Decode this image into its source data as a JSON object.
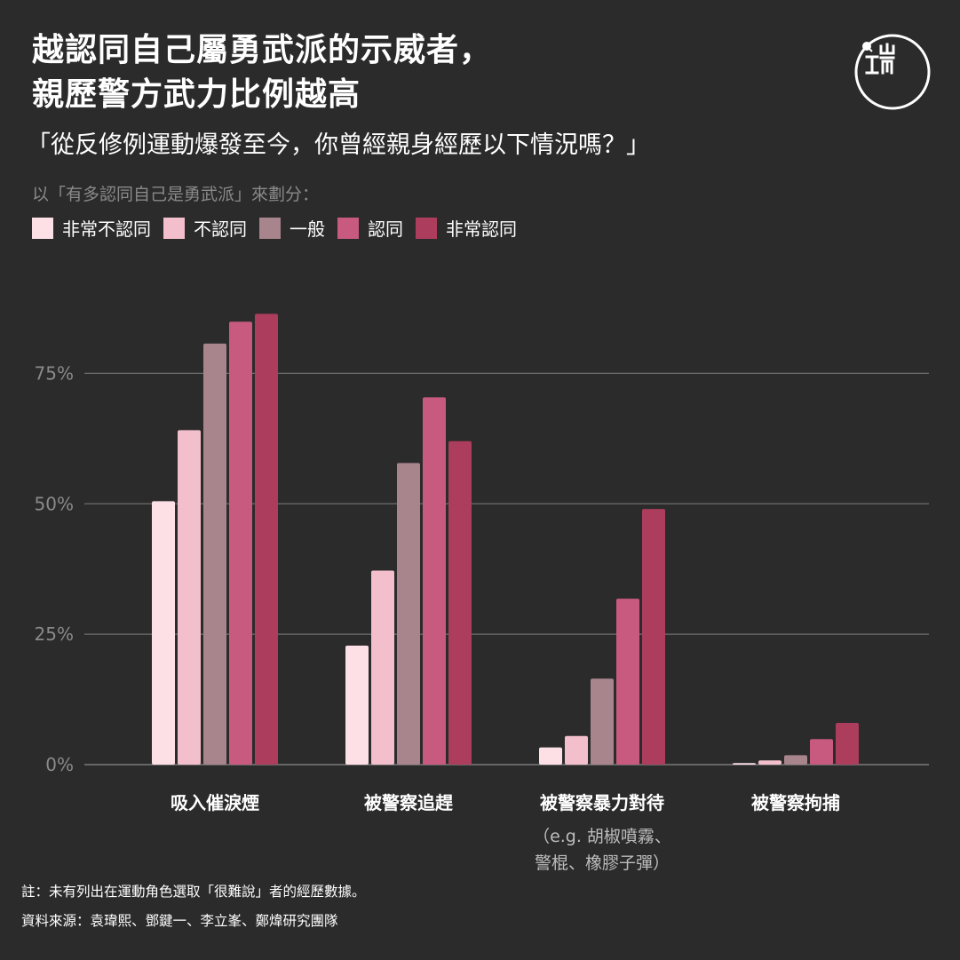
{
  "header": {
    "title_line1": "越認同自己屬勇武派的示威者，",
    "title_line2": "親歷警方武力比例越高",
    "subtitle": "「從反修例運動爆發至今，你曾經親身經歷以下情況嗎？」",
    "grouping_note": "以「有多認同自己是勇武派」來劃分："
  },
  "logo": {
    "icon": "initium-media-logo-icon"
  },
  "footer": {
    "note": "註：未有列出在運動角色選取「很難說」者的經歷數據。",
    "source": "資料來源：袁瑋熙、鄧鍵一、李立峯、鄭煒研究團隊"
  },
  "chart_data": {
    "type": "bar",
    "title": "越認同自己屬勇武派的示威者，親歷警方武力比例越高",
    "subtitle": "「從反修例運動爆發至今，你曾經親身經歷以下情況嗎？」",
    "categories": [
      "吸入催淚煙",
      "被警察追趕",
      "被警察暴力對待",
      "被警察拘捕"
    ],
    "category_sublabels": [
      "",
      "",
      "（e.g. 胡椒噴霧、\n警棍、橡膠子彈）",
      ""
    ],
    "series": [
      {
        "name": "非常不認同",
        "color": "#fde0e6",
        "values": [
          50.5,
          22.8,
          3.3,
          0.3
        ]
      },
      {
        "name": "不認同",
        "color": "#f3bfcc",
        "values": [
          64.1,
          37.2,
          5.5,
          0.8
        ]
      },
      {
        "name": "一般",
        "color": "#a8848d",
        "values": [
          80.7,
          57.8,
          16.5,
          1.8
        ]
      },
      {
        "name": "認同",
        "color": "#c85a80",
        "values": [
          84.9,
          70.4,
          31.8,
          4.9
        ]
      },
      {
        "name": "非常認同",
        "color": "#ad3d5c",
        "values": [
          86.4,
          62.0,
          49.0,
          8.0
        ]
      }
    ],
    "yticks": [
      0,
      25,
      50,
      75
    ],
    "ytick_labels": [
      "0%",
      "25%",
      "50%",
      "75%"
    ],
    "ylim": [
      0,
      90
    ],
    "grid": true,
    "legend_position": "top-left",
    "xlabel": "",
    "ylabel": ""
  }
}
